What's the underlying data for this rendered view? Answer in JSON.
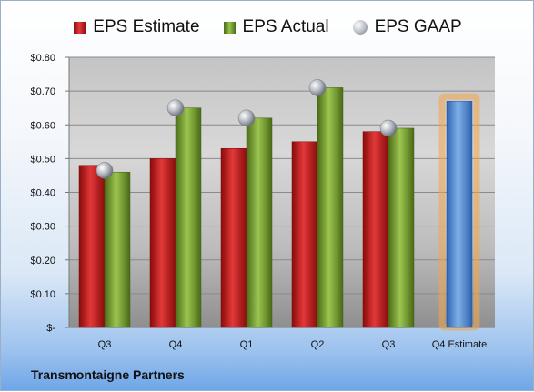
{
  "chart_data": {
    "type": "bar",
    "categories": [
      "Q3",
      "Q4",
      "Q1",
      "Q2",
      "Q3",
      "Q4 Estimate"
    ],
    "series": [
      {
        "name": "EPS Estimate",
        "values": [
          0.48,
          0.5,
          0.53,
          0.55,
          0.58,
          null
        ]
      },
      {
        "name": "EPS Actual",
        "values": [
          0.46,
          0.65,
          0.62,
          0.71,
          0.59,
          null
        ]
      },
      {
        "name": "EPS GAAP",
        "values": [
          0.465,
          0.65,
          0.62,
          0.71,
          0.59,
          null
        ]
      }
    ],
    "forecast": {
      "category": "Q4 Estimate",
      "value": 0.67
    },
    "ylim": [
      0,
      0.8
    ],
    "yticks": [
      0,
      0.1,
      0.2,
      0.3,
      0.4,
      0.5,
      0.6,
      0.7,
      0.8
    ],
    "ytick_labels": [
      "$-",
      "$0.10",
      "$0.20",
      "$0.30",
      "$0.40",
      "$0.50",
      "$0.60",
      "$0.70",
      "$0.80"
    ],
    "legend_position": "top",
    "grid": true,
    "colors": {
      "estimate": "#c82020",
      "actual": "#7aa33a",
      "gaap": "#a9aeb7",
      "forecast": "#5b8fd6",
      "forecast_glow": "#f0a64a"
    }
  },
  "footer": {
    "company": "Transmontaigne Partners"
  }
}
